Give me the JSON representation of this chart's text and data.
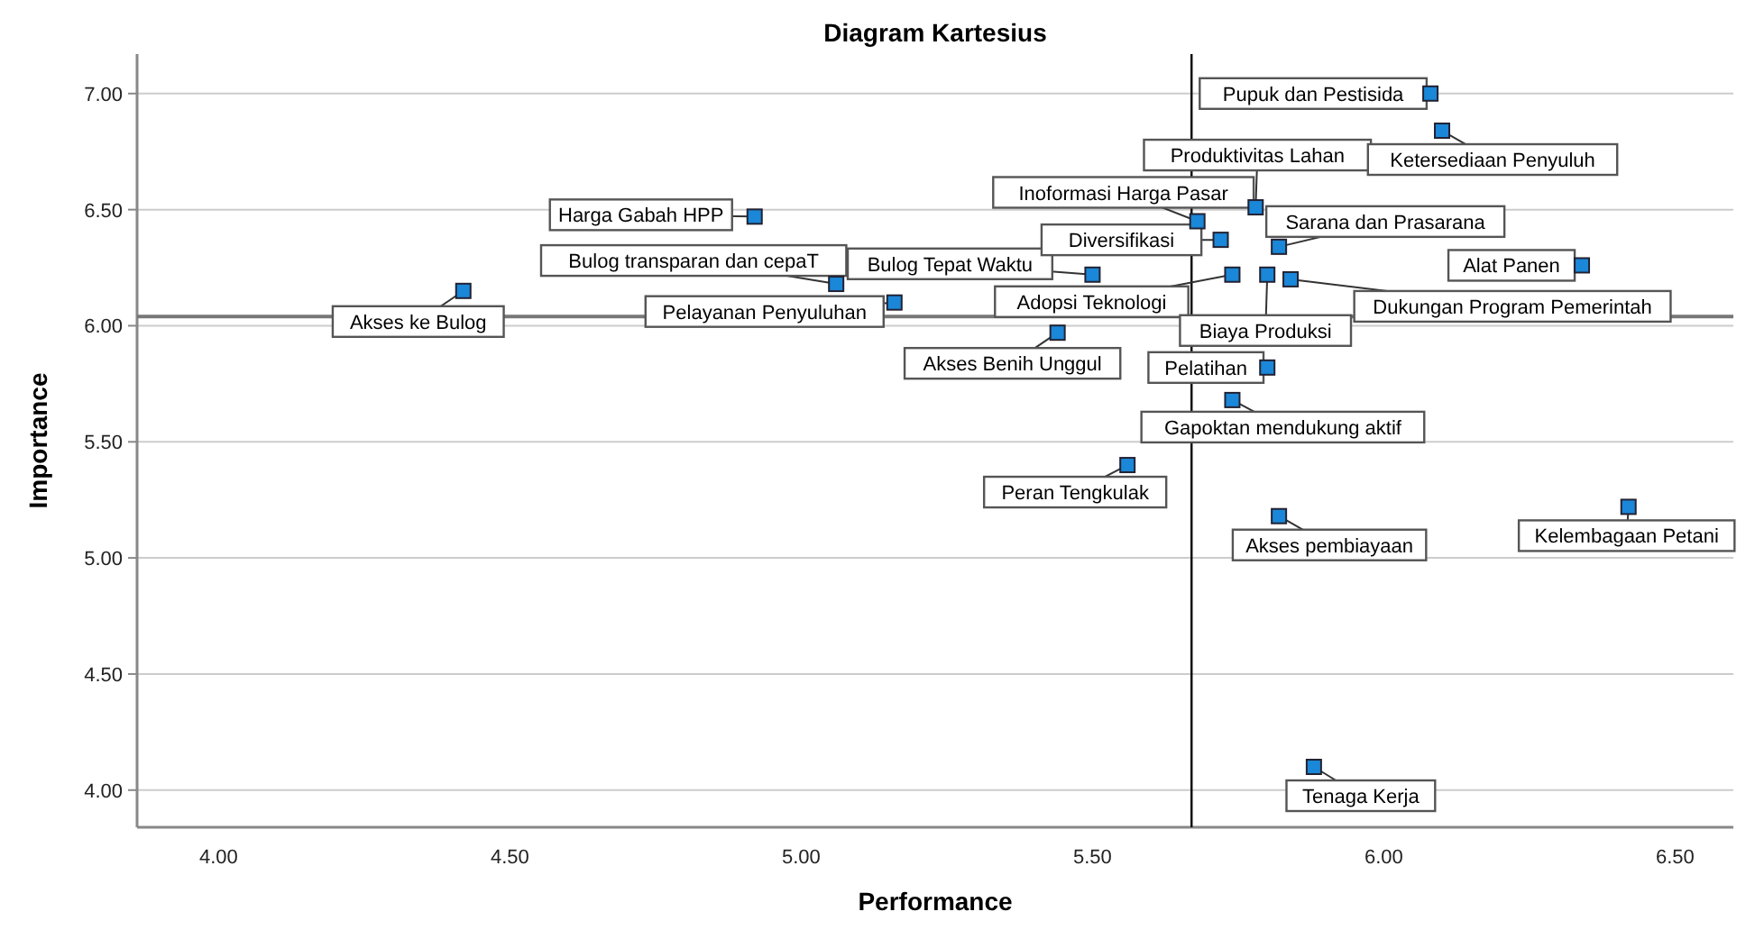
{
  "chart_data": {
    "type": "scatter",
    "title": "Diagram Kartesius",
    "xlabel": "Performance",
    "ylabel": "Importance",
    "x": [
      4.42,
      4.92,
      5.06,
      5.16,
      5.5,
      5.44,
      5.56,
      5.68,
      5.72,
      5.78,
      5.82,
      6.08,
      6.1,
      5.74,
      5.8,
      5.84,
      6.34,
      5.8,
      5.74,
      5.82,
      6.42,
      5.88
    ],
    "series": [
      {
        "color": "#1a87d8",
        "values": [
          6.15,
          6.47,
          6.18,
          6.1,
          6.22,
          5.97,
          5.4,
          6.45,
          6.37,
          6.51,
          6.34,
          7.0,
          6.84,
          6.22,
          6.22,
          6.2,
          6.26,
          5.82,
          5.68,
          5.18,
          5.22,
          4.1
        ]
      }
    ],
    "annotations": [
      {
        "text": "Akses ke Bulog",
        "x": 4.42,
        "y": 6.15
      },
      {
        "text": "Harga Gabah HPP",
        "x": 4.92,
        "y": 6.47
      },
      {
        "text": "Bulog transparan dan cepaT",
        "x": 5.06,
        "y": 6.18
      },
      {
        "text": "Pelayanan Penyuluhan",
        "x": 5.16,
        "y": 6.1
      },
      {
        "text": "Bulog Tepat Waktu",
        "x": 5.5,
        "y": 6.22
      },
      {
        "text": "Akses Benih Unggul",
        "x": 5.44,
        "y": 5.97
      },
      {
        "text": "Peran Tengkulak",
        "x": 5.56,
        "y": 5.4
      },
      {
        "text": "Inoformasi Harga Pasar",
        "x": 5.68,
        "y": 6.45
      },
      {
        "text": "Diversifikasi",
        "x": 5.72,
        "y": 6.37
      },
      {
        "text": "Produktivitas Lahan",
        "x": 5.78,
        "y": 6.51
      },
      {
        "text": "Sarana dan Prasarana",
        "x": 5.82,
        "y": 6.34
      },
      {
        "text": "Pupuk dan Pestisida",
        "x": 6.08,
        "y": 7.0
      },
      {
        "text": "Ketersediaan Penyuluh",
        "x": 6.1,
        "y": 6.84
      },
      {
        "text": "Adopsi Teknologi",
        "x": 5.74,
        "y": 6.22
      },
      {
        "text": "Biaya Produksi",
        "x": 5.8,
        "y": 6.22
      },
      {
        "text": "Dukungan Program Pemerintah",
        "x": 5.84,
        "y": 6.2
      },
      {
        "text": "Alat Panen",
        "x": 6.34,
        "y": 6.26
      },
      {
        "text": "Pelatihan",
        "x": 5.8,
        "y": 5.82
      },
      {
        "text": "Gapoktan mendukung aktif",
        "x": 5.74,
        "y": 5.68
      },
      {
        "text": "Akses pembiayaan",
        "x": 5.82,
        "y": 5.18
      },
      {
        "text": "Kelembagaan Petani",
        "x": 6.42,
        "y": 5.22
      },
      {
        "text": "Tenaga Kerja",
        "x": 5.88,
        "y": 4.1
      }
    ],
    "ref_lines": [
      {
        "axis": "x",
        "value": 5.67,
        "color": "#000000"
      },
      {
        "axis": "y",
        "value": 6.04,
        "color": "#777777"
      }
    ],
    "xlim": [
      3.86,
      6.6
    ],
    "ylim": [
      3.84,
      7.17
    ],
    "xticks": [
      {
        "value": 4,
        "label": "4.00"
      },
      {
        "value": 4.5,
        "label": "4.50"
      },
      {
        "value": 5,
        "label": "5.00"
      },
      {
        "value": 5.5,
        "label": "5.50"
      },
      {
        "value": 6,
        "label": "6.00"
      },
      {
        "value": 6.5,
        "label": "6.50"
      }
    ],
    "yticks": [
      {
        "value": 4,
        "label": "4.00"
      },
      {
        "value": 4.5,
        "label": "4.50"
      },
      {
        "value": 5,
        "label": "5.00"
      },
      {
        "value": 5.5,
        "label": "5.50"
      },
      {
        "value": 6,
        "label": "6.00"
      },
      {
        "value": 6.5,
        "label": "6.50"
      },
      {
        "value": 7,
        "label": "7.00"
      }
    ],
    "grid": "y",
    "marker": "square"
  }
}
